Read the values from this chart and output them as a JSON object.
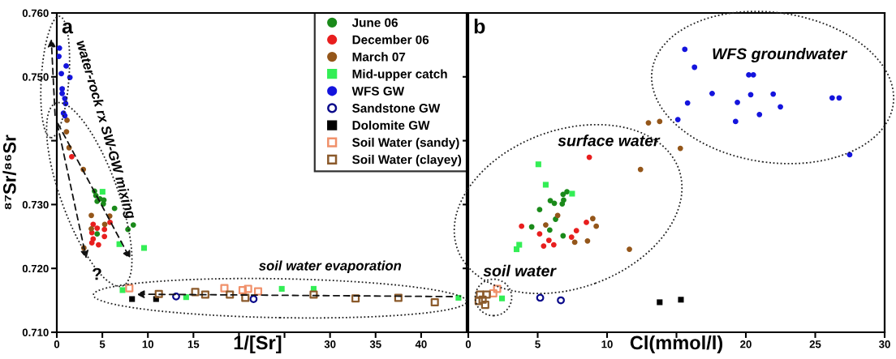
{
  "chart_data": [
    {
      "type": "scatter",
      "title": "a",
      "xlabel": "1/[Sr]",
      "ylabel": "⁸⁷Sr/⁸⁶Sr",
      "xlim": [
        0,
        45
      ],
      "xticks": [
        0,
        5,
        10,
        15,
        {
          "value": 20,
          "label": null
        },
        {
          "value": 25,
          "label": null
        },
        30,
        35,
        40
      ],
      "ylim": [
        0.71,
        0.76
      ],
      "yticks": [
        {
          "value": 0.71,
          "label": "0.710"
        },
        {
          "value": 0.72,
          "label": "0.720"
        },
        {
          "value": 0.73,
          "label": "0.730"
        },
        {
          "value": 0.74,
          "label": null
        },
        {
          "value": 0.75,
          "label": "0.750"
        },
        {
          "value": 0.76,
          "label": "0.760"
        }
      ],
      "grid": false,
      "legend": "top right",
      "annotations": [
        "water-rock rx SW-GW mixing",
        "?",
        "soil water evaporation"
      ],
      "series": [
        {
          "name": "June 06",
          "color": "#1a8a1a",
          "marker": "circle",
          "x": [
            4.14,
            4.29,
            4.73,
            5.17,
            4.43,
            5.11,
            6.34,
            7.81,
            8.4,
            5.84,
            4.43
          ],
          "values": [
            0.7321,
            0.7314,
            0.7309,
            0.7307,
            0.7305,
            0.7301,
            0.7294,
            0.7261,
            0.7268,
            null,
            0.7254
          ]
        },
        {
          "name": "December 06",
          "color": "#e81e1e",
          "marker": "circle",
          "x": [
            1.64,
            3.99,
            3.85,
            4.43,
            3.99,
            3.85,
            5.23,
            5.23,
            4.58,
            5.84
          ],
          "values": [
            0.7375,
            0.7269,
            0.7256,
            0.7263,
            0.7246,
            0.724,
            0.7261,
            0.725,
            0.7237,
            0.7272
          ]
        },
        {
          "name": "March 07",
          "color": "#94561a",
          "marker": "circle",
          "x": [
            1.12,
            1.06,
            1.35,
            2.91,
            3.79,
            3.79,
            5.81,
            5.26,
            2.97
          ],
          "values": [
            0.7432,
            0.7414,
            0.7389,
            0.7355,
            0.7283,
            0.7262,
            0.7282,
            0.7269,
            0.7232
          ]
        },
        {
          "name": "Mid-upper catch",
          "color": "#33ee55",
          "marker": "square",
          "x": [
            5.02,
            6.87,
            9.58,
            7.22,
            14.2,
            24.7,
            28.2,
            44.1
          ],
          "values": [
            0.732,
            0.7238,
            0.7232,
            0.7166,
            0.7155,
            0.7168,
            0.7168,
            0.7154
          ]
        },
        {
          "name": "WFS GW",
          "color": "#1414dd",
          "marker": "circle",
          "x": [
            0.29,
            0.23,
            1.03,
            1.44,
            0.5,
            0.59,
            0.73,
            0.88,
            0.97,
            0.73,
            0.88,
            0.59
          ],
          "values": [
            0.7545,
            0.7532,
            0.7517,
            0.7499,
            0.7505,
            0.7481,
            null,
            0.7466,
            0.7458,
            0.7443,
            0.7439,
            0.7474
          ]
        },
        {
          "name": "Sandstone GW",
          "color": "#0a0a8a",
          "marker": "circle",
          "x": [
            13.1,
            21.6
          ],
          "values": [
            0.7156,
            0.7152
          ]
        },
        {
          "name": "Dolomite GW",
          "color": "#000000",
          "marker": "square",
          "x": [
            8.26,
            10.9
          ],
          "values": [
            0.7152,
            0.7152
          ]
        },
        {
          "name": "Soil Water (sandy)",
          "color": "#f0906a",
          "marker": "square",
          "x": [
            7.96,
            18.4,
            20.4,
            21.0,
            22.1
          ],
          "values": [
            0.7169,
            0.7169,
            0.7166,
            0.7168,
            0.7164
          ]
        },
        {
          "name": "Soil Water (clayey)",
          "color": "#8b5a2b",
          "marker": "square",
          "x": [
            11.2,
            15.2,
            16.3,
            19.0,
            20.7,
            28.2,
            32.8,
            37.5,
            41.5
          ],
          "values": [
            0.716,
            0.7163,
            0.7159,
            0.7159,
            0.7154,
            0.7159,
            0.7153,
            0.7154,
            0.7147
          ]
        }
      ]
    },
    {
      "type": "scatter",
      "title": "b",
      "xlabel": "Cl(mmol/l)",
      "xlim": [
        0,
        30
      ],
      "xticks": [
        0,
        5,
        10,
        {
          "value": 15,
          "label": null
        },
        20,
        25,
        30
      ],
      "ylim": [
        0.71,
        0.76
      ],
      "yticks": [
        {
          "value": 0.71,
          "label": null
        },
        {
          "value": 0.72,
          "label": null
        },
        {
          "value": 0.73,
          "label": null
        },
        {
          "value": 0.74,
          "label": null
        },
        {
          "value": 0.75,
          "label": null
        },
        {
          "value": 0.76,
          "label": null
        }
      ],
      "grid": false,
      "tick_labels": "x",
      "annotations": [
        "surface water",
        "soil water",
        "WFS groundwater"
      ],
      "series": [
        {
          "color": "#1a8a1a",
          "marker": "circle",
          "x": [
            5.14,
            5.91,
            6.2,
            6.83,
            7.11,
            6.87,
            6.77,
            6.29,
            4.57,
            5.87,
            6.83
          ],
          "values": [
            0.7292,
            0.7306,
            0.7302,
            0.7316,
            0.732,
            0.7307,
            0.7301,
            0.7277,
            0.7265,
            0.726,
            0.7251
          ]
        },
        {
          "color": "#e81e1e",
          "marker": "circle",
          "x": [
            8.72,
            3.84,
            5.14,
            5.81,
            5.43,
            6.16,
            7.44,
            7.79,
            8.51
          ],
          "values": [
            0.7374,
            0.7266,
            0.7254,
            0.7244,
            0.7235,
            0.7237,
            0.7249,
            0.7259,
            0.7272
          ]
        },
        {
          "color": "#94561a",
          "marker": "circle",
          "x": [
            12.98,
            13.79,
            15.28,
            12.41,
            6.44,
            5.58,
            8.97,
            9.22,
            8.59,
            7.67,
            11.61
          ],
          "values": [
            0.7428,
            0.743,
            0.7388,
            0.7355,
            0.7283,
            0.7268,
            0.7278,
            0.7266,
            0.7243,
            0.7241,
            0.723
          ]
        },
        {
          "color": "#33ee55",
          "marker": "square",
          "x": [
            5.05,
            5.58,
            7.48,
            3.67,
            3.48,
            2.43
          ],
          "values": [
            0.7363,
            0.7331,
            0.7317,
            0.7237,
            0.723,
            0.7153
          ]
        },
        {
          "color": "#1414dd",
          "marker": "circle",
          "x": [
            15.6,
            16.3,
            15.8,
            15.1,
            17.57,
            19.39,
            19.26,
            20.35,
            20.21,
            20.54,
            20.98,
            21.97,
            22.49,
            26.22,
            26.72,
            27.48
          ],
          "values": [
            0.7543,
            0.7515,
            0.7459,
            0.7433,
            0.7474,
            0.746,
            0.743,
            0.7472,
            0.7503,
            0.7503,
            0.7441,
            0.7473,
            0.7453,
            0.7467,
            0.7467,
            0.7378
          ]
        },
        {
          "color": "#0a0a8a",
          "marker": "circle",
          "x": [
            5.18,
            6.67
          ],
          "values": [
            0.7154,
            0.715
          ]
        },
        {
          "color": "#000000",
          "marker": "square",
          "x": [
            13.79,
            15.32
          ],
          "values": [
            0.7147,
            0.7151
          ]
        },
        {
          "color": "#f0906a",
          "marker": "square",
          "x": [
            2.08,
            1.8
          ],
          "values": [
            0.7168,
            0.7161
          ]
        },
        {
          "color": "#8b5a2b",
          "marker": "square",
          "x": [
            0.84,
            1.32,
            1.03,
            1.22,
            0.75
          ],
          "values": [
            0.7159,
            0.7159,
            0.7151,
            0.7143,
            0.7149
          ]
        }
      ]
    }
  ]
}
